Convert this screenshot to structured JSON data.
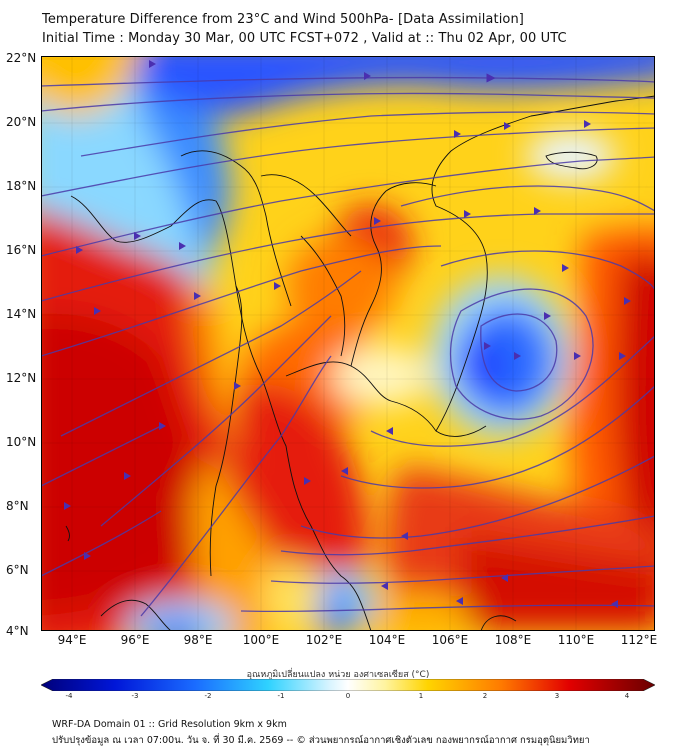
{
  "title": {
    "line1": "Temperature Difference from 23°C and Wind 500hPa- [Data Assimilation]",
    "line2": "Initial Time : Monday 30 Mar, 00 UTC FCST+072 , Valid at ::  Thu 02 Apr, 00 UTC"
  },
  "map": {
    "lat_labels": [
      "22°N",
      "20°N",
      "18°N",
      "16°N",
      "14°N",
      "12°N",
      "10°N",
      "8°N",
      "6°N",
      "4°N"
    ],
    "lon_labels": [
      "94°E",
      "96°E",
      "98°E",
      "100°E",
      "102°E",
      "104°E",
      "106°E",
      "108°E",
      "110°E",
      "112°E"
    ],
    "lat_range": [
      4,
      22
    ],
    "lon_range": [
      93,
      113
    ],
    "field": "temperature difference",
    "overlay": "500hPa streamlines",
    "colors": {
      "cold": "#1a3cff",
      "neutral": "#ffffff",
      "warm": "#ffd400",
      "hot": "#e80000",
      "streamline": "#5a3ab0"
    }
  },
  "colorbar": {
    "label": "อุณหภูมิเปลี่ยนแปลง หน่วย องศาเซลเซียส (°C)",
    "ticks": [
      "-4",
      "-3",
      "-2",
      "-1",
      "0",
      "1",
      "2",
      "3",
      "4"
    ],
    "range": [
      -4,
      4
    ]
  },
  "footer": {
    "line1": "WRF-DA Domain 01 :: Grid Resolution 9km x 9km",
    "line2": "ปรับปรุงข้อมูล ณ เวลา 07:00น. วัน จ. ที่ 30 มี.ค. 2569 -- © ส่วนพยากรณ์อากาศเชิงตัวเลข กองพยากรณ์อากาศ กรมอุตุนิยมวิทยา"
  }
}
